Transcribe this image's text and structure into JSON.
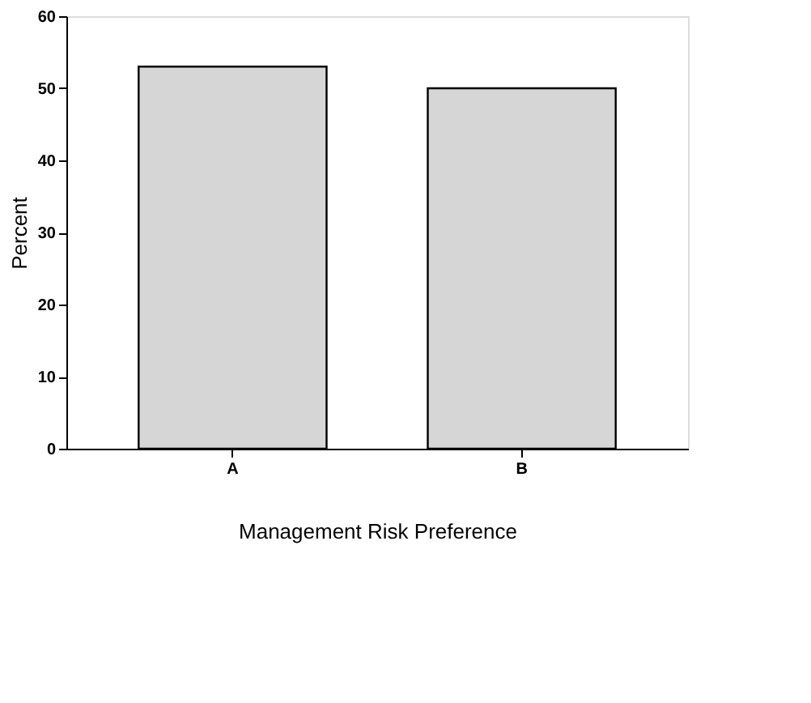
{
  "chart_data": {
    "type": "bar",
    "xlabel": "Management Risk Preference",
    "ylabel": "Percent",
    "categories": [
      "A",
      "B"
    ],
    "values": [
      53,
      50
    ],
    "color": "#d6d6d6",
    "ylim": [
      0,
      60
    ],
    "yticks": [
      0,
      10,
      20,
      30,
      40,
      50,
      60
    ],
    "grid": false
  }
}
